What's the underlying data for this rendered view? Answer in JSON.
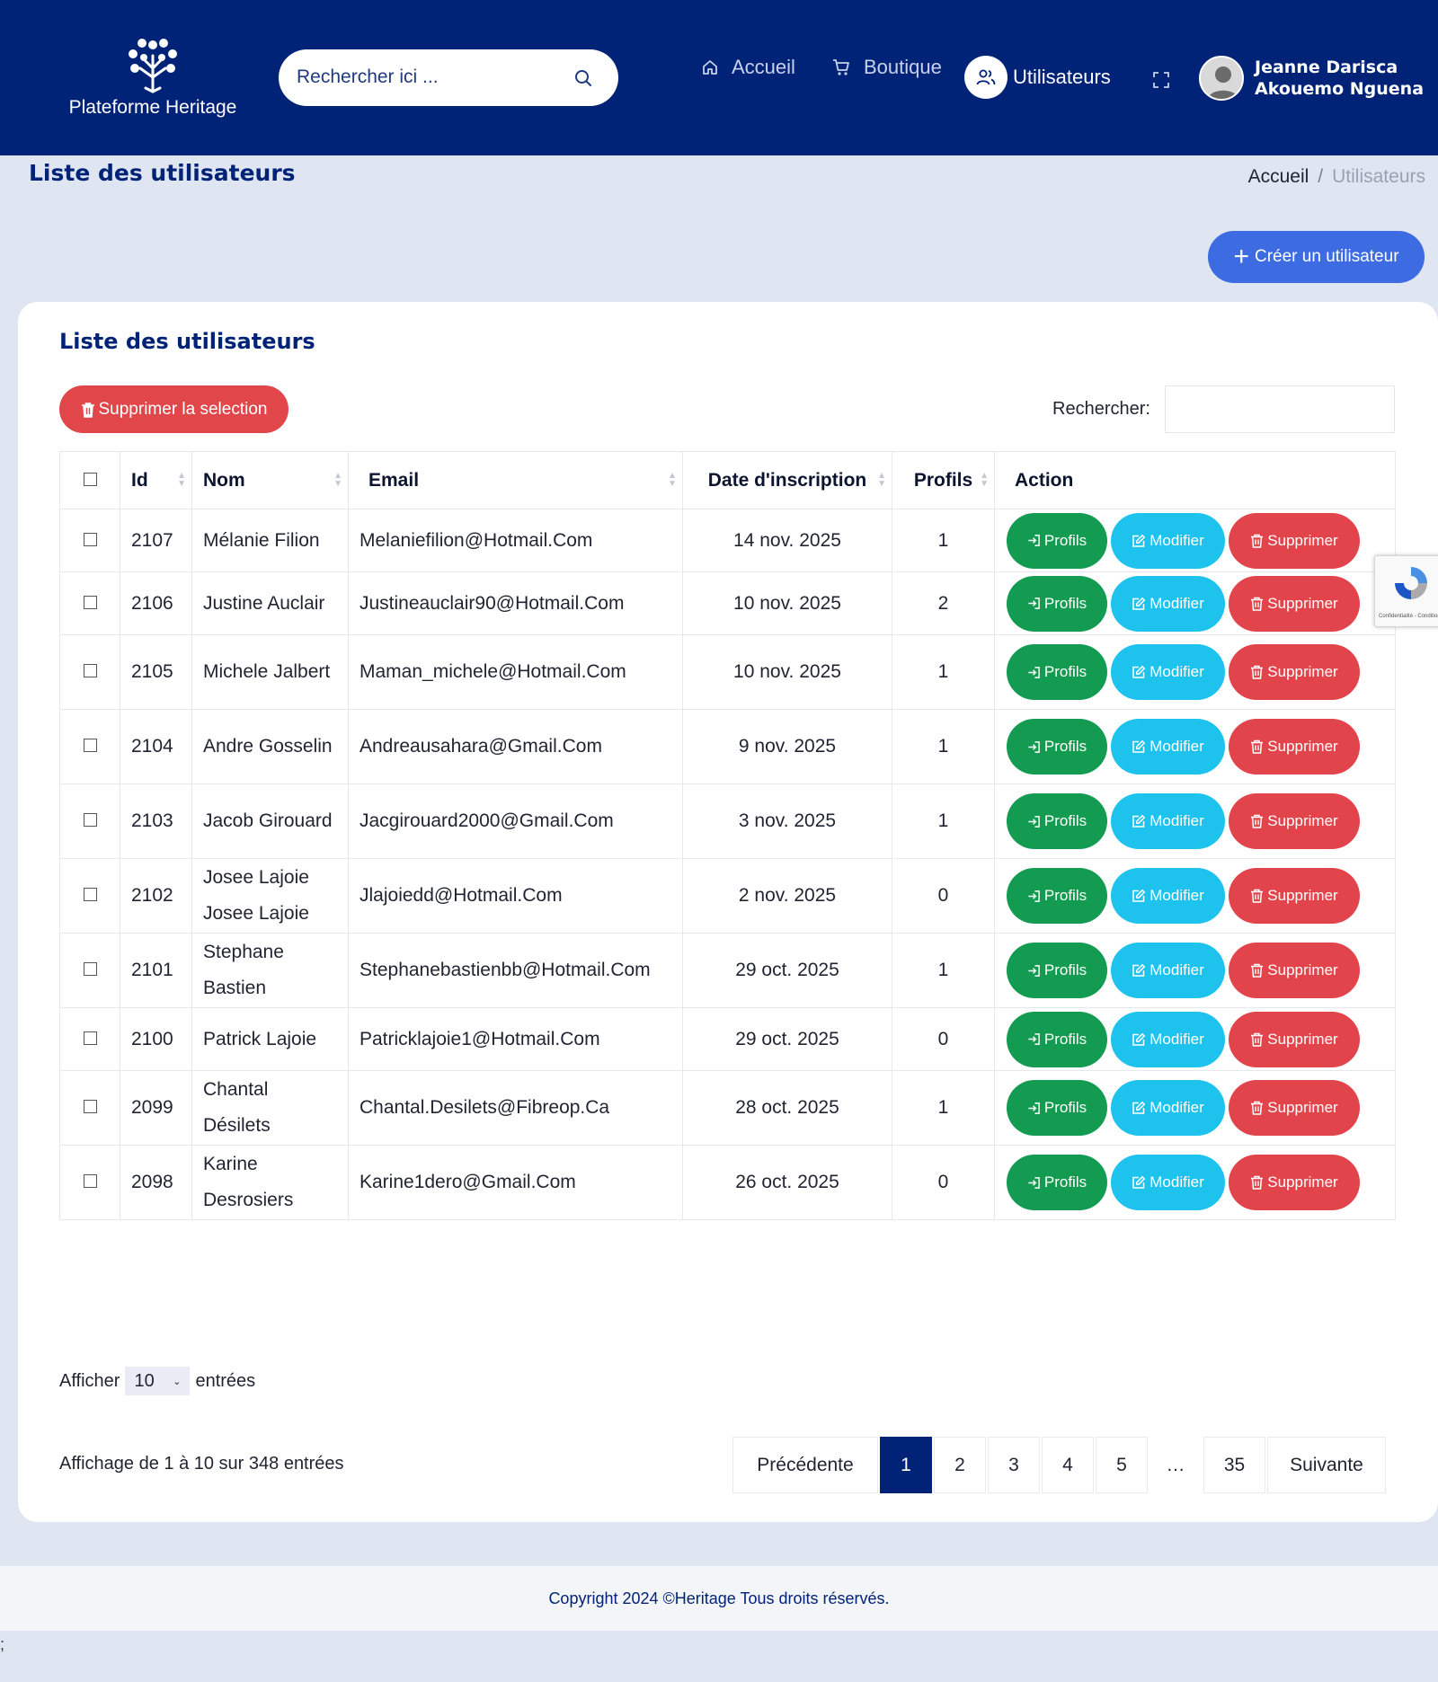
{
  "header": {
    "logo_text": "Plateforme Heritage",
    "search_placeholder": "Rechercher ici ...",
    "nav": {
      "home": "Accueil",
      "shop": "Boutique",
      "users": "Utilisateurs"
    },
    "user_name_line1": "Jeanne Darisca",
    "user_name_line2": "Akouemo Nguena"
  },
  "page": {
    "title": "Liste des utilisateurs",
    "breadcrumb_home": "Accueil",
    "breadcrumb_sep": "/",
    "breadcrumb_current": "Utilisateurs",
    "create_button": "Créer un utilisateur"
  },
  "card": {
    "title": "Liste des utilisateurs",
    "delete_selection": "Supprimer la selection",
    "filter_label": "Rechercher:"
  },
  "table": {
    "headers": {
      "id": "Id",
      "nom": "Nom",
      "email": "Email",
      "date": "Date d'inscription",
      "profils": "Profils",
      "action": "Action"
    },
    "action_labels": {
      "profils": "Profils",
      "modifier": "Modifier",
      "supprimer": "Supprimer"
    },
    "rows": [
      {
        "id": "2107",
        "nom": "Mélanie Filion",
        "email": "Melaniefilion@Hotmail.Com",
        "date": "14 nov. 2025",
        "profils": "1"
      },
      {
        "id": "2106",
        "nom": "Justine Auclair",
        "email": "Justineauclair90@Hotmail.Com",
        "date": "10 nov. 2025",
        "profils": "2"
      },
      {
        "id": "2105",
        "nom": "Michele Jalbert",
        "email": "Maman_michele@Hotmail.Com",
        "date": "10 nov. 2025",
        "profils": "1"
      },
      {
        "id": "2104",
        "nom": "Andre Gosselin",
        "email": "Andreausahara@Gmail.Com",
        "date": "9 nov. 2025",
        "profils": "1"
      },
      {
        "id": "2103",
        "nom": "Jacob Girouard",
        "email": "Jacgirouard2000@Gmail.Com",
        "date": "3 nov. 2025",
        "profils": "1"
      },
      {
        "id": "2102",
        "nom": "Josee Lajoie Josee Lajoie",
        "email": "Jlajoiedd@Hotmail.Com",
        "date": "2 nov. 2025",
        "profils": "0"
      },
      {
        "id": "2101",
        "nom": "Stephane Bastien",
        "email": "Stephanebastienbb@Hotmail.Com",
        "date": "29 oct. 2025",
        "profils": "1"
      },
      {
        "id": "2100",
        "nom": "Patrick Lajoie",
        "email": "Patricklajoie1@Hotmail.Com",
        "date": "29 oct. 2025",
        "profils": "0"
      },
      {
        "id": "2099",
        "nom": "Chantal Désilets",
        "email": "Chantal.Desilets@Fibreop.Ca",
        "date": "28 oct. 2025",
        "profils": "1"
      },
      {
        "id": "2098",
        "nom": "Karine Desrosiers",
        "email": "Karine1dero@Gmail.Com",
        "date": "26 oct. 2025",
        "profils": "0"
      }
    ]
  },
  "length": {
    "prefix": "Afficher",
    "value": "10",
    "suffix": "entrées"
  },
  "info": "Affichage de 1 à 10 sur 348 entrées",
  "pagination": {
    "previous": "Précédente",
    "pages": [
      "1",
      "2",
      "3",
      "4",
      "5",
      "…",
      "35"
    ],
    "active": "1",
    "next": "Suivante"
  },
  "footer": "Copyright 2024 ©Heritage Tous droits réservés.",
  "stray_text": ";",
  "colors": {
    "header_bg": "#012377",
    "green": "#149b52",
    "cyan": "#1ec3ed",
    "red": "#e2444c",
    "primary_blue": "#3c6be2"
  }
}
